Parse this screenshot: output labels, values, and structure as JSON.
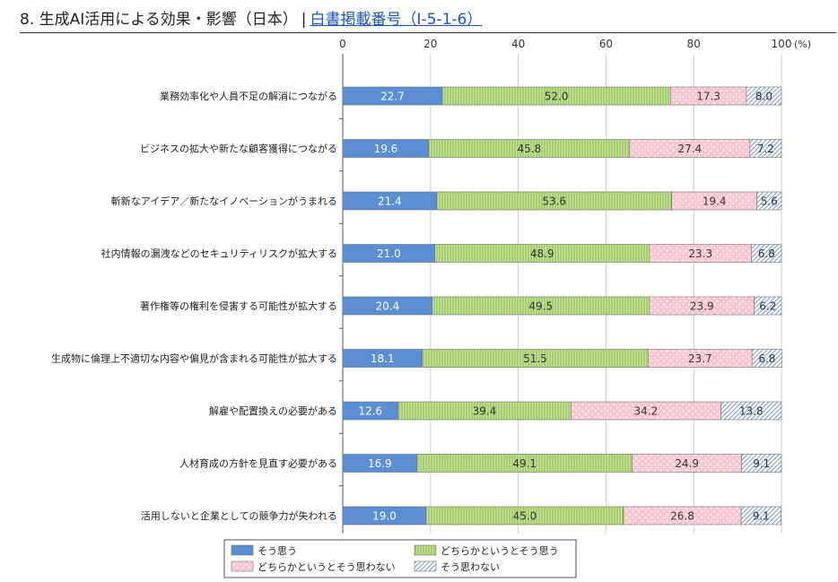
{
  "header": {
    "title": "8. 生成AI活用による効果・影響（日本）",
    "separator": "|",
    "link_text": "白書掲載番号（Ⅰ-5-1-6）"
  },
  "chart_data": {
    "type": "bar",
    "orientation": "horizontal",
    "stacked": true,
    "xlim": [
      0,
      100
    ],
    "x_ticks": [
      0,
      20,
      40,
      60,
      80,
      100
    ],
    "x_unit": "(%)",
    "legend_position": "bottom",
    "categories": [
      "業務効率化や人員不足の解消につながる",
      "ビジネスの拡大や新たな顧客獲得につながる",
      "斬新なアイデア／新たなイノベーションがうまれる",
      "社内情報の漏洩などのセキュリティリスクが拡大する",
      "著作権等の権利を侵害する可能性が拡大する",
      "生成物に倫理上不適切な内容や偏見が含まれる可能性が拡大する",
      "解雇や配置換えの必要がある",
      "人材育成の方針を見直す必要がある",
      "活用しないと企業としての競争力が失われる"
    ],
    "series": [
      {
        "name": "そう思う",
        "color": "#5b8fd4",
        "pattern": "solid",
        "values": [
          22.7,
          19.6,
          21.4,
          21.0,
          20.4,
          18.1,
          12.6,
          16.9,
          19.0
        ]
      },
      {
        "name": "どちらかというとそう思う",
        "color": "#b8de7e",
        "pattern": "vertical-lines",
        "values": [
          52.0,
          45.8,
          53.6,
          48.9,
          49.5,
          51.5,
          39.4,
          49.1,
          45.0
        ]
      },
      {
        "name": "どちらかというとそう思わない",
        "color": "#fbc7d3",
        "pattern": "dots",
        "values": [
          17.3,
          27.4,
          19.4,
          23.3,
          23.9,
          23.7,
          34.2,
          24.9,
          26.8
        ]
      },
      {
        "name": "そう思わない",
        "color": "#bcd0f0",
        "pattern": "diagonal-lines",
        "values": [
          8.0,
          7.2,
          5.6,
          6.8,
          6.2,
          6.8,
          13.8,
          9.1,
          9.1
        ]
      }
    ]
  }
}
